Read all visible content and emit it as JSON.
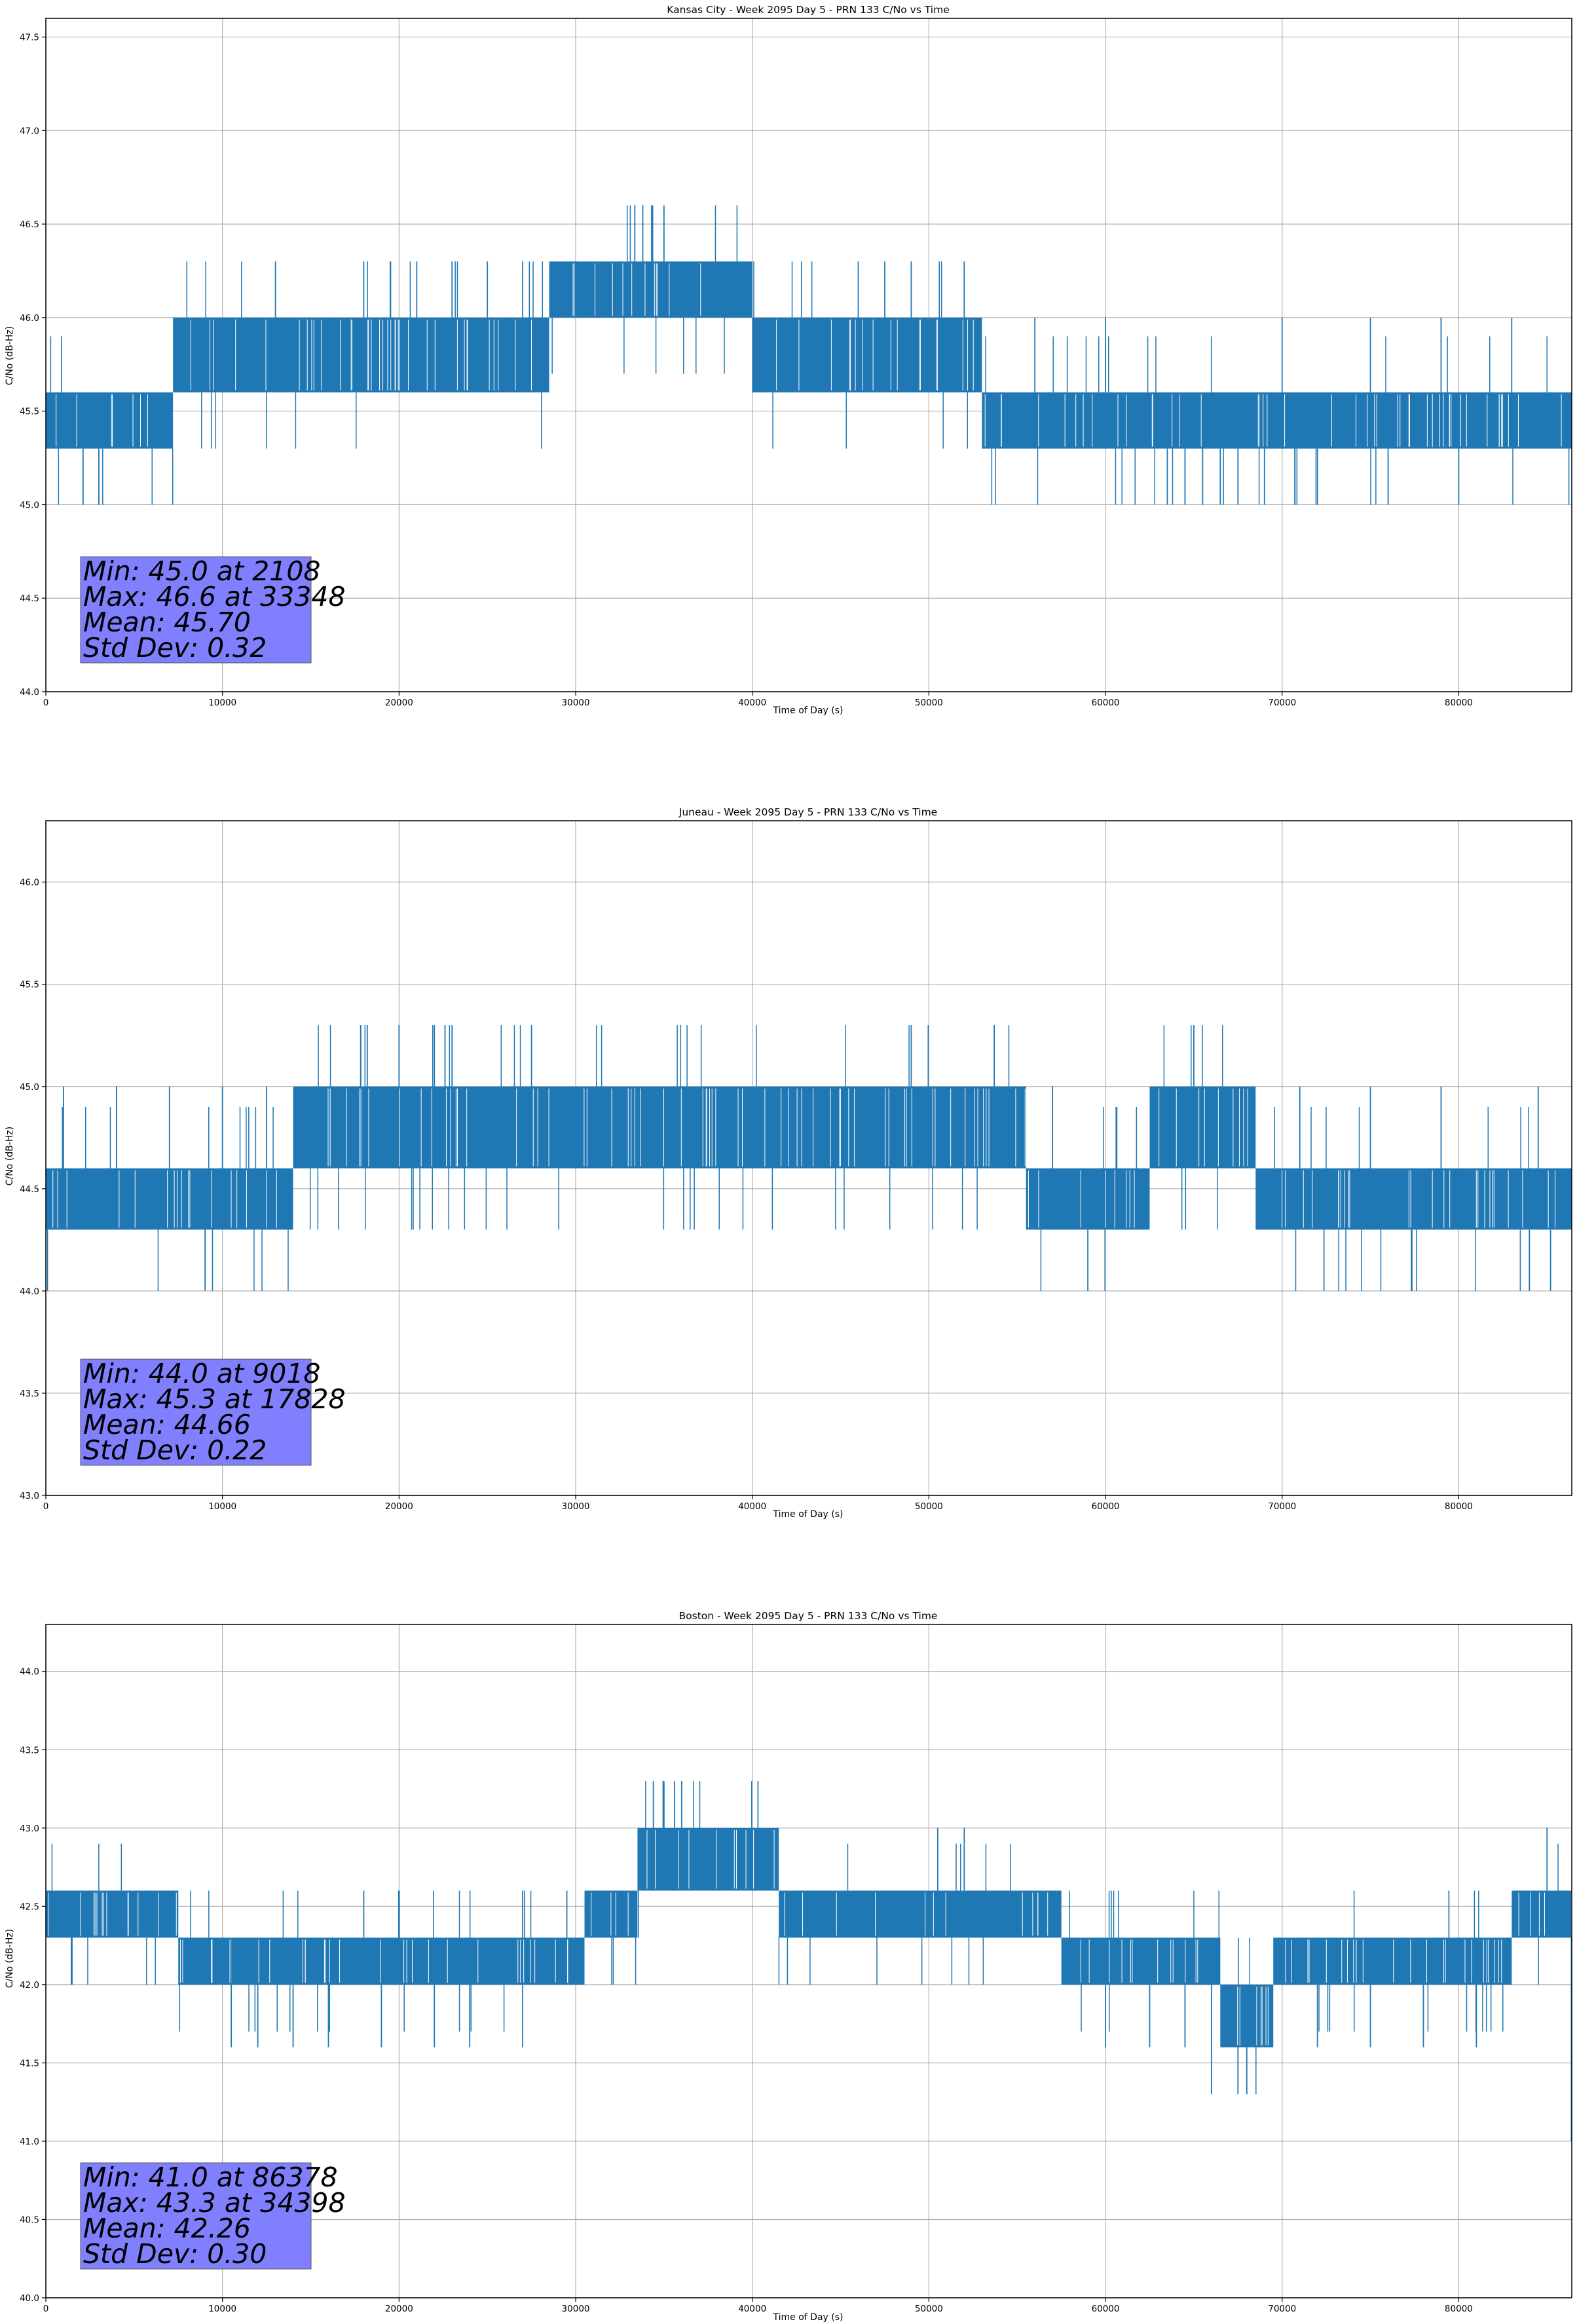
{
  "chart_data": [
    {
      "type": "line",
      "title": "Kansas City - Week 2095 Day 5 - PRN 133 C/No vs Time",
      "xlabel": "Time of Day (s)",
      "ylabel": "C/No (dB-Hz)",
      "xlim": [
        0,
        86400
      ],
      "ylim": [
        44.0,
        47.6
      ],
      "xticks": [
        0,
        10000,
        20000,
        30000,
        40000,
        50000,
        60000,
        70000,
        80000
      ],
      "yticks": [
        "44.0",
        "44.5",
        "45.0",
        "45.5",
        "46.0",
        "46.5",
        "47.0",
        "47.5"
      ],
      "grid": true,
      "series_color": "#1f77b4",
      "series": [
        {
          "name": "PRN 133 C/No",
          "segments": [
            {
              "x0": 0,
              "x1": 7200,
              "lo": 45.3,
              "hi": 45.6
            },
            {
              "x0": 7200,
              "x1": 28500,
              "lo": 45.6,
              "hi": 46.0
            },
            {
              "x0": 28500,
              "x1": 40000,
              "lo": 46.0,
              "hi": 46.3
            },
            {
              "x0": 40000,
              "x1": 53000,
              "lo": 45.6,
              "hi": 46.0
            },
            {
              "x0": 53000,
              "x1": 86400,
              "lo": 45.3,
              "hi": 45.6
            }
          ],
          "spikes": [
            {
              "x": 2108,
              "y": 45.0
            },
            {
              "x": 3000,
              "y": 45.0
            },
            {
              "x": 13000,
              "y": 46.3
            },
            {
              "x": 18000,
              "y": 46.3
            },
            {
              "x": 19500,
              "y": 46.3
            },
            {
              "x": 21000,
              "y": 46.3
            },
            {
              "x": 23000,
              "y": 46.3
            },
            {
              "x": 25000,
              "y": 46.3
            },
            {
              "x": 27000,
              "y": 46.3
            },
            {
              "x": 33348,
              "y": 46.6
            },
            {
              "x": 33800,
              "y": 46.6
            },
            {
              "x": 34300,
              "y": 46.6
            },
            {
              "x": 35000,
              "y": 46.6
            },
            {
              "x": 46000,
              "y": 46.3
            },
            {
              "x": 47500,
              "y": 46.3
            },
            {
              "x": 49000,
              "y": 46.3
            },
            {
              "x": 52000,
              "y": 46.3
            },
            {
              "x": 56000,
              "y": 46.0
            },
            {
              "x": 60000,
              "y": 46.0
            },
            {
              "x": 63500,
              "y": 45.0
            },
            {
              "x": 64500,
              "y": 45.0
            },
            {
              "x": 65500,
              "y": 45.0
            },
            {
              "x": 66500,
              "y": 45.0
            },
            {
              "x": 67500,
              "y": 45.0
            },
            {
              "x": 69000,
              "y": 45.0
            },
            {
              "x": 72000,
              "y": 45.0
            },
            {
              "x": 76000,
              "y": 45.0
            },
            {
              "x": 80000,
              "y": 45.0
            },
            {
              "x": 70000,
              "y": 46.0
            },
            {
              "x": 75000,
              "y": 46.0
            },
            {
              "x": 79000,
              "y": 46.0
            },
            {
              "x": 83000,
              "y": 46.0
            }
          ]
        }
      ],
      "stats": [
        "Min: 45.0 at 2108",
        "Max: 46.6 at 33348",
        "Mean: 45.70",
        "Std Dev: 0.32"
      ]
    },
    {
      "type": "line",
      "title": "Juneau - Week 2095 Day 5 - PRN 133 C/No vs Time",
      "xlabel": "Time of Day (s)",
      "ylabel": "C/No (dB-Hz)",
      "xlim": [
        0,
        86400
      ],
      "ylim": [
        43.0,
        46.3
      ],
      "xticks": [
        0,
        10000,
        20000,
        30000,
        40000,
        50000,
        60000,
        70000,
        80000
      ],
      "yticks": [
        "43.0",
        "43.5",
        "44.0",
        "44.5",
        "45.0",
        "45.5",
        "46.0"
      ],
      "grid": true,
      "series_color": "#1f77b4",
      "series": [
        {
          "name": "PRN 133 C/No",
          "segments": [
            {
              "x0": 0,
              "x1": 14000,
              "lo": 44.3,
              "hi": 44.6
            },
            {
              "x0": 14000,
              "x1": 55500,
              "lo": 44.6,
              "hi": 45.0
            },
            {
              "x0": 55500,
              "x1": 62500,
              "lo": 44.3,
              "hi": 44.6
            },
            {
              "x0": 62500,
              "x1": 68500,
              "lo": 44.6,
              "hi": 45.0
            },
            {
              "x0": 68500,
              "x1": 86400,
              "lo": 44.3,
              "hi": 44.6
            }
          ],
          "spikes": [
            {
              "x": 9018,
              "y": 44.0
            },
            {
              "x": 59000,
              "y": 44.0
            },
            {
              "x": 84000,
              "y": 44.0
            },
            {
              "x": 85200,
              "y": 44.0
            },
            {
              "x": 17828,
              "y": 45.3
            },
            {
              "x": 18200,
              "y": 45.3
            },
            {
              "x": 20000,
              "y": 45.3
            },
            {
              "x": 22000,
              "y": 45.3
            },
            {
              "x": 22600,
              "y": 45.3
            },
            {
              "x": 23000,
              "y": 45.3
            },
            {
              "x": 27500,
              "y": 45.3
            },
            {
              "x": 49000,
              "y": 45.3
            },
            {
              "x": 53700,
              "y": 45.3
            },
            {
              "x": 65000,
              "y": 45.3
            },
            {
              "x": 1000,
              "y": 45.0
            },
            {
              "x": 4000,
              "y": 45.0
            },
            {
              "x": 7000,
              "y": 45.0
            },
            {
              "x": 10000,
              "y": 45.0
            },
            {
              "x": 12500,
              "y": 45.0
            },
            {
              "x": 57000,
              "y": 45.0
            },
            {
              "x": 71000,
              "y": 45.0
            },
            {
              "x": 75000,
              "y": 45.0
            },
            {
              "x": 79000,
              "y": 45.0
            },
            {
              "x": 84500,
              "y": 45.0
            }
          ]
        }
      ],
      "stats": [
        "Min: 44.0 at 9018",
        "Max: 45.3 at 17828",
        "Mean: 44.66",
        "Std Dev: 0.22"
      ]
    },
    {
      "type": "line",
      "title": "Boston - Week 2095 Day 5 - PRN 133 C/No vs Time",
      "xlabel": "Time of Day (s)",
      "ylabel": "C/No (dB-Hz)",
      "xlim": [
        0,
        86400
      ],
      "ylim": [
        40.0,
        44.3
      ],
      "xticks": [
        0,
        10000,
        20000,
        30000,
        40000,
        50000,
        60000,
        70000,
        80000
      ],
      "yticks": [
        "40.0",
        "40.5",
        "41.0",
        "41.5",
        "42.0",
        "42.5",
        "43.0",
        "43.5",
        "44.0"
      ],
      "grid": true,
      "series_color": "#1f77b4",
      "series": [
        {
          "name": "PRN 133 C/No",
          "segments": [
            {
              "x0": 0,
              "x1": 7500,
              "lo": 42.3,
              "hi": 42.6
            },
            {
              "x0": 7500,
              "x1": 10500,
              "lo": 42.0,
              "hi": 42.3
            },
            {
              "x0": 10500,
              "x1": 30500,
              "lo": 42.0,
              "hi": 42.3
            },
            {
              "x0": 30500,
              "x1": 33500,
              "lo": 42.3,
              "hi": 42.6
            },
            {
              "x0": 33500,
              "x1": 41500,
              "lo": 42.6,
              "hi": 43.0
            },
            {
              "x0": 41500,
              "x1": 57500,
              "lo": 42.3,
              "hi": 42.6
            },
            {
              "x0": 57500,
              "x1": 66500,
              "lo": 42.0,
              "hi": 42.3
            },
            {
              "x0": 66500,
              "x1": 69500,
              "lo": 41.6,
              "hi": 42.0
            },
            {
              "x0": 69500,
              "x1": 83000,
              "lo": 42.0,
              "hi": 42.3
            },
            {
              "x0": 83000,
              "x1": 86400,
              "lo": 42.3,
              "hi": 42.6
            }
          ],
          "spikes": [
            {
              "x": 86378,
              "y": 41.0
            },
            {
              "x": 34398,
              "y": 43.3
            },
            {
              "x": 35000,
              "y": 43.3
            },
            {
              "x": 35600,
              "y": 43.3
            },
            {
              "x": 36000,
              "y": 43.3
            },
            {
              "x": 10500,
              "y": 41.6
            },
            {
              "x": 12000,
              "y": 41.6
            },
            {
              "x": 14000,
              "y": 41.6
            },
            {
              "x": 16000,
              "y": 41.6
            },
            {
              "x": 19000,
              "y": 41.6
            },
            {
              "x": 22000,
              "y": 41.6
            },
            {
              "x": 24000,
              "y": 41.6
            },
            {
              "x": 27000,
              "y": 41.6
            },
            {
              "x": 60000,
              "y": 41.6
            },
            {
              "x": 62500,
              "y": 41.6
            },
            {
              "x": 64500,
              "y": 41.6
            },
            {
              "x": 66000,
              "y": 41.3
            },
            {
              "x": 67500,
              "y": 41.3
            },
            {
              "x": 68000,
              "y": 41.3
            },
            {
              "x": 72000,
              "y": 41.6
            },
            {
              "x": 75000,
              "y": 41.6
            },
            {
              "x": 78000,
              "y": 41.6
            },
            {
              "x": 81000,
              "y": 41.6
            },
            {
              "x": 18000,
              "y": 42.6
            },
            {
              "x": 27000,
              "y": 42.6
            },
            {
              "x": 29500,
              "y": 42.6
            },
            {
              "x": 50500,
              "y": 43.0
            },
            {
              "x": 52000,
              "y": 43.0
            },
            {
              "x": 85000,
              "y": 43.0
            }
          ]
        }
      ],
      "stats": [
        "Min: 41.0 at 86378",
        "Max: 43.3 at 34398",
        "Mean: 42.26",
        "Std Dev: 0.30"
      ]
    }
  ]
}
